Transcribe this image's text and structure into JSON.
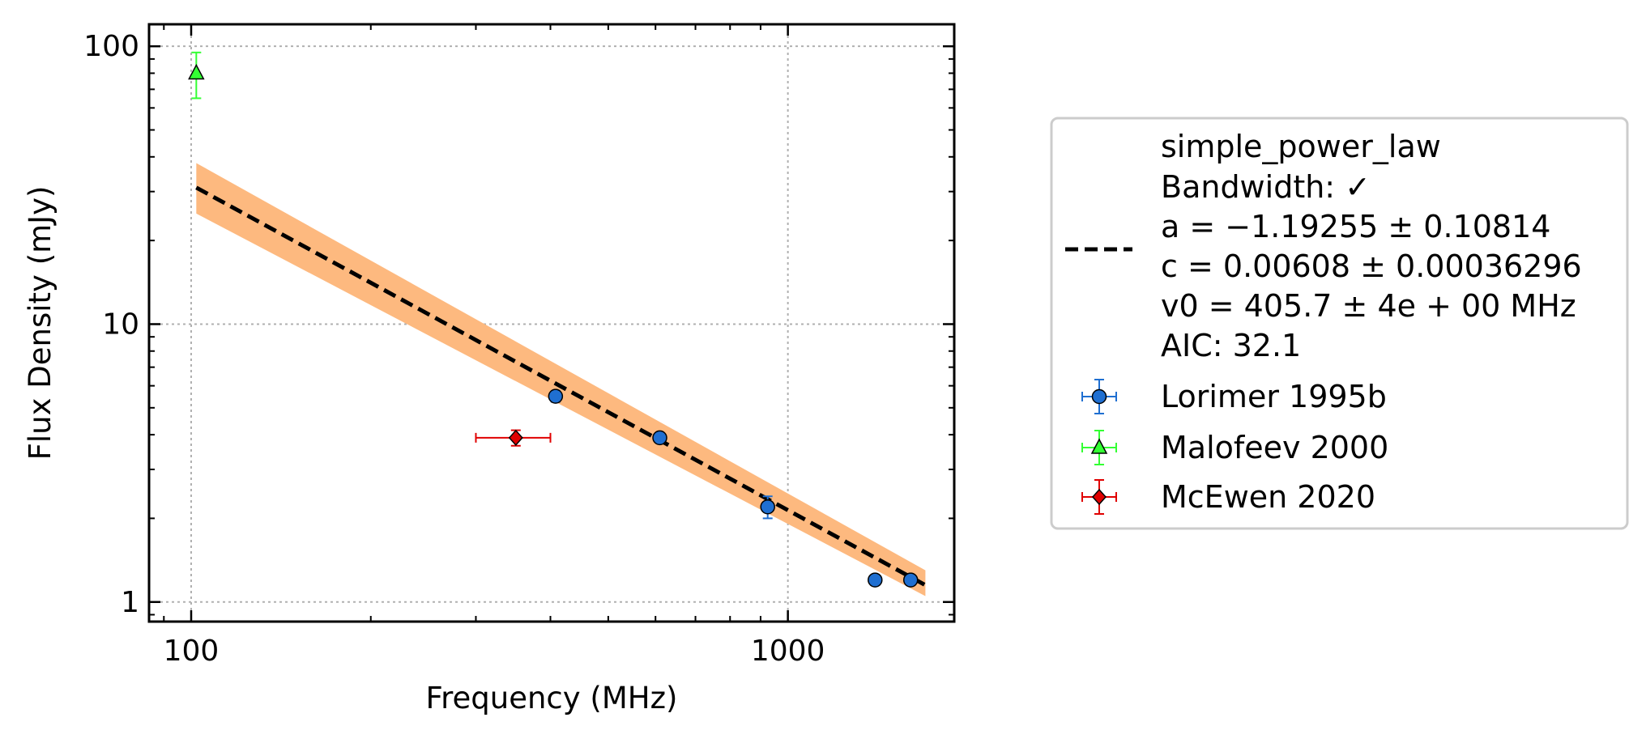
{
  "chart_data": {
    "type": "scatter",
    "title": "",
    "xlabel": "Frequency (MHz)",
    "ylabel": "Flux Density (mJy)",
    "xscale": "log",
    "yscale": "log",
    "xlim": [
      85,
      1900
    ],
    "ylim": [
      0.85,
      120
    ],
    "x_ticks": [
      {
        "value": 100,
        "label": "100"
      },
      {
        "value": 1000,
        "label": "1000"
      }
    ],
    "y_ticks": [
      {
        "value": 1,
        "label": "1"
      },
      {
        "value": 10,
        "label": "10"
      },
      {
        "value": 100,
        "label": "100"
      }
    ],
    "grid": true,
    "legend_position": "outside-right",
    "fit": {
      "label_lines": [
        "simple_power_law",
        "Bandwidth: ✓",
        "a = −1.19255 ± 0.10814",
        "c = 0.00608 ± 0.00036296",
        "v0 = 405.7 ± 4e + 00 MHz",
        "AIC: 32.1"
      ],
      "line_color": "#000000",
      "band_color": "#fdb97f",
      "x_start": 102,
      "x_end": 1700,
      "y_start": 31,
      "y_end": 1.15,
      "band_start": [
        25,
        38
      ],
      "band_end": [
        1.05,
        1.3
      ]
    },
    "series": [
      {
        "name": "Lorimer 1995b",
        "marker": "circle",
        "color": "#1f6fd1",
        "points": [
          {
            "x": 408,
            "y": 5.5,
            "yerr": 0.25
          },
          {
            "x": 610,
            "y": 3.9,
            "yerr": 0.15
          },
          {
            "x": 925,
            "y": 2.2,
            "yerr": 0.2
          },
          {
            "x": 1400,
            "y": 1.2,
            "yerr": 0.05
          },
          {
            "x": 1606,
            "y": 1.2,
            "yerr": 0.05
          }
        ]
      },
      {
        "name": "Malofeev 2000",
        "marker": "triangle",
        "color": "#33ff33",
        "points": [
          {
            "x": 102,
            "y": 80,
            "yerr": 15
          }
        ]
      },
      {
        "name": "McEwen 2020",
        "marker": "diamond",
        "color": "#e00000",
        "points": [
          {
            "x": 350,
            "y": 3.9,
            "xerr": [
              50,
              50
            ],
            "yerr": 0.25
          }
        ]
      }
    ]
  }
}
